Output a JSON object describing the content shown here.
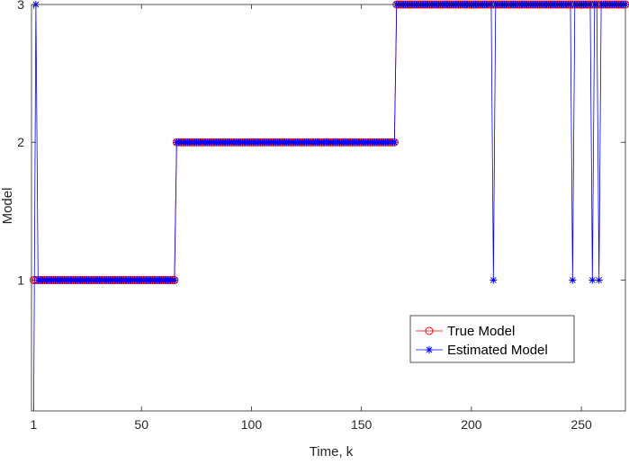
{
  "chart_data": {
    "type": "line",
    "title": "",
    "xlabel": "Time, k",
    "ylabel": "Model",
    "xlim": [
      0,
      270
    ],
    "ylim": [
      0.05,
      3.0
    ],
    "xticks": [
      1,
      50,
      100,
      150,
      200,
      250
    ],
    "yticks": [
      1,
      2,
      3
    ],
    "grid": false,
    "legend_position": "bottom-right",
    "series": [
      {
        "name": "True Model",
        "color": "#ff0000",
        "marker": "circle",
        "segments": [
          {
            "x_start": 1,
            "x_end": 65,
            "value": 1
          },
          {
            "x_start": 66,
            "x_end": 165,
            "value": 2
          },
          {
            "x_start": 166,
            "x_end": 270,
            "value": 3
          }
        ]
      },
      {
        "name": "Estimated Model",
        "color": "#0000ff",
        "marker": "asterisk",
        "segments": [
          {
            "x_start": 1,
            "x_end": 1,
            "value": 0.05
          },
          {
            "x_start": 2,
            "x_end": 2,
            "value": 3
          },
          {
            "x_start": 3,
            "x_end": 65,
            "value": 1
          },
          {
            "x_start": 66,
            "x_end": 165,
            "value": 2
          },
          {
            "x_start": 166,
            "x_end": 270,
            "value": 3
          }
        ],
        "outliers": [
          {
            "x": 210,
            "y": 1
          },
          {
            "x": 246,
            "y": 1
          },
          {
            "x": 255,
            "y": 1
          },
          {
            "x": 258,
            "y": 1
          }
        ]
      }
    ]
  }
}
